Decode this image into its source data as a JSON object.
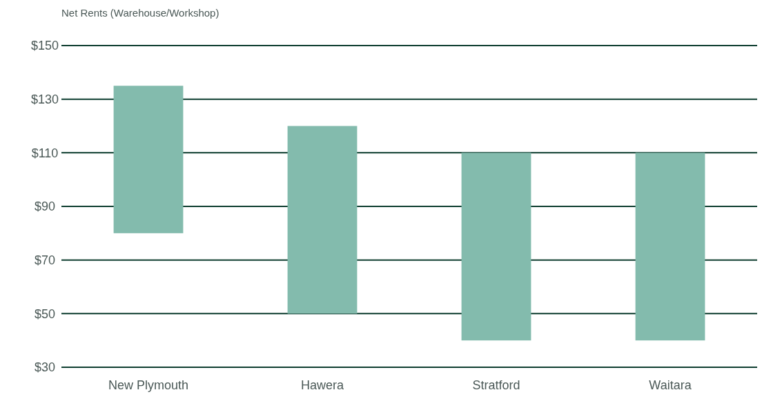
{
  "chart_data": {
    "type": "bar",
    "title": "Net Rents (Warehouse/Workshop)",
    "categories": [
      "New Plymouth",
      "Hawera",
      "Stratford",
      "Waitara"
    ],
    "base": [
      80,
      50,
      40,
      40
    ],
    "values": [
      55,
      70,
      70,
      70
    ],
    "color": "#83bbad",
    "ylim": [
      30,
      150
    ],
    "yticks": [
      {
        "value": 30,
        "label": "$30"
      },
      {
        "value": 50,
        "label": "$50"
      },
      {
        "value": 70,
        "label": "$70"
      },
      {
        "value": 90,
        "label": "$90"
      },
      {
        "value": 110,
        "label": "$110"
      },
      {
        "value": 130,
        "label": "$130"
      },
      {
        "value": 150,
        "label": "$150"
      }
    ],
    "grid": "y"
  }
}
